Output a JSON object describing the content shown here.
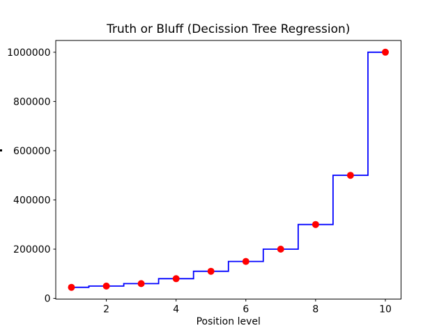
{
  "chart_data": {
    "type": "line",
    "subtype": "decision-tree-regression-step-with-scatter",
    "title": "Truth or Bluff (Decission Tree Regression)",
    "xlabel": "Position level",
    "x": [
      1,
      2,
      3,
      4,
      5,
      6,
      7,
      8,
      9,
      10
    ],
    "y": [
      45000,
      50000,
      60000,
      80000,
      110000,
      150000,
      200000,
      300000,
      500000,
      1000000
    ],
    "step_boundaries": "midpoints-between-x",
    "xticks": [
      2,
      4,
      6,
      8,
      10
    ],
    "yticks": [
      0,
      200000,
      400000,
      600000,
      800000,
      1000000
    ],
    "xlim": [
      0.55,
      10.45
    ],
    "ylim": [
      -2750,
      1047750
    ],
    "line_color": "#0000ff",
    "point_color": "#ff0000",
    "axes_color": "#000000",
    "background_color": "#ffffff",
    "grid": false,
    "legend": "none"
  }
}
